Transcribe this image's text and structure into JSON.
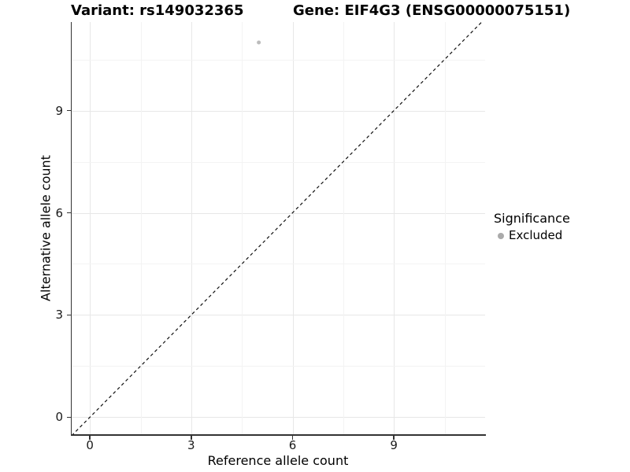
{
  "chart_data": {
    "type": "scatter",
    "titles": {
      "left": "Variant: rs149032365",
      "right": "Gene: EIF4G3 (ENSG00000075151)"
    },
    "xlabel": "Reference allele count",
    "ylabel": "Alternative allele count",
    "xlim": [
      -0.54,
      11.7
    ],
    "ylim": [
      -0.5,
      11.6
    ],
    "xticks": [
      0,
      3,
      6,
      9
    ],
    "yticks": [
      0,
      3,
      6,
      9
    ],
    "xminor": [
      1.5,
      4.5,
      7.5,
      10.5
    ],
    "yminor": [
      1.5,
      4.5,
      7.5,
      10.5
    ],
    "grid": "major+minor, very light on white panel",
    "points": [
      {
        "x": 5,
        "y": 11,
        "significance": "Excluded"
      }
    ],
    "reference_line": {
      "style": "dashed",
      "slope": 1,
      "intercept": 0,
      "description": "y = x identity line across panel"
    },
    "legend": {
      "title": "Significance",
      "position": "right-middle",
      "entries": [
        {
          "label": "Excluded",
          "marker": "circle",
          "color": "#aaaaaa"
        }
      ]
    },
    "colors": {
      "point": "#bcbcbc",
      "grid_major": "#e7e7e7",
      "grid_minor": "#f3f3f3",
      "axis": "#333333",
      "dashed_line": "#111111",
      "background": "#ffffff"
    }
  }
}
